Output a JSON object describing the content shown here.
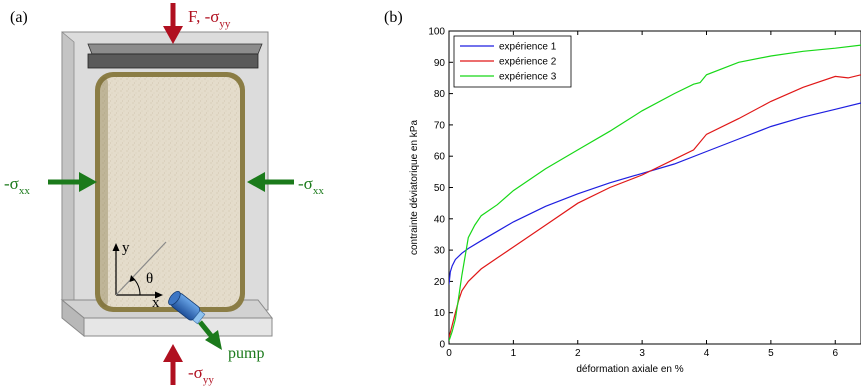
{
  "panel_a": {
    "label": "(a)",
    "top_force": "F, -σ",
    "top_force_sub": "yy",
    "bottom_force": "-σ",
    "bottom_force_sub": "yy",
    "left_force": "-σ",
    "left_force_sub": "xx",
    "right_force": "-σ",
    "right_force_sub": "xx",
    "axis_x": "x",
    "axis_y": "y",
    "angle": "θ",
    "pump": "pump",
    "colors": {
      "force_red": "#b01020",
      "force_green": "#1b7a1b",
      "sample": "#e4dccb",
      "frame": "#8b7d45"
    }
  },
  "panel_b": {
    "label": "(b)",
    "chart_data": {
      "type": "line",
      "xlabel": "déformation axiale en %",
      "ylabel": "contrainte déviatorique en kPa",
      "xlim": [
        0,
        6.4
      ],
      "ylim": [
        0,
        100
      ],
      "xticks": [
        "0",
        "1",
        "2",
        "3",
        "4",
        "5",
        "6"
      ],
      "yticks": [
        "0",
        "10",
        "20",
        "30",
        "40",
        "50",
        "60",
        "70",
        "80",
        "90",
        "100"
      ],
      "legend_position": "top-left",
      "grid": false,
      "series": [
        {
          "name": "expérience 1",
          "color": "#1f1fe0",
          "x": [
            0,
            0.02,
            0.05,
            0.1,
            0.2,
            0.3,
            0.5,
            0.75,
            1,
            1.5,
            2,
            2.5,
            3,
            3.5,
            4,
            4.5,
            5,
            5.5,
            6,
            6.4
          ],
          "y": [
            19,
            23,
            25,
            27,
            29,
            30.5,
            33,
            36,
            39,
            44,
            48,
            51.5,
            54.5,
            57.5,
            61.5,
            65.5,
            69.5,
            72.5,
            75,
            77
          ]
        },
        {
          "name": "expérience 2",
          "color": "#e01818",
          "x": [
            0,
            0.05,
            0.1,
            0.15,
            0.2,
            0.3,
            0.5,
            0.75,
            1,
            1.5,
            2,
            2.5,
            3,
            3.5,
            3.8,
            4,
            4.5,
            5,
            5.5,
            6,
            6.2,
            6.4
          ],
          "y": [
            2,
            6,
            10,
            14,
            17,
            20,
            24,
            27.5,
            31,
            38,
            45,
            50,
            54,
            59,
            62,
            67,
            72,
            77.5,
            82,
            85.5,
            85,
            86
          ]
        },
        {
          "name": "expérience 3",
          "color": "#18d818",
          "x": [
            0,
            0.05,
            0.1,
            0.15,
            0.2,
            0.25,
            0.3,
            0.4,
            0.5,
            0.75,
            1,
            1.5,
            2,
            2.5,
            3,
            3.5,
            3.8,
            3.9,
            4,
            4.5,
            5,
            5.5,
            6,
            6.4
          ],
          "y": [
            1,
            4,
            8,
            15,
            22,
            28,
            34,
            38,
            41,
            44.5,
            49,
            56,
            62,
            68,
            74.5,
            80,
            83,
            83.5,
            86,
            90,
            92,
            93.5,
            94.5,
            95.5
          ]
        }
      ]
    }
  }
}
